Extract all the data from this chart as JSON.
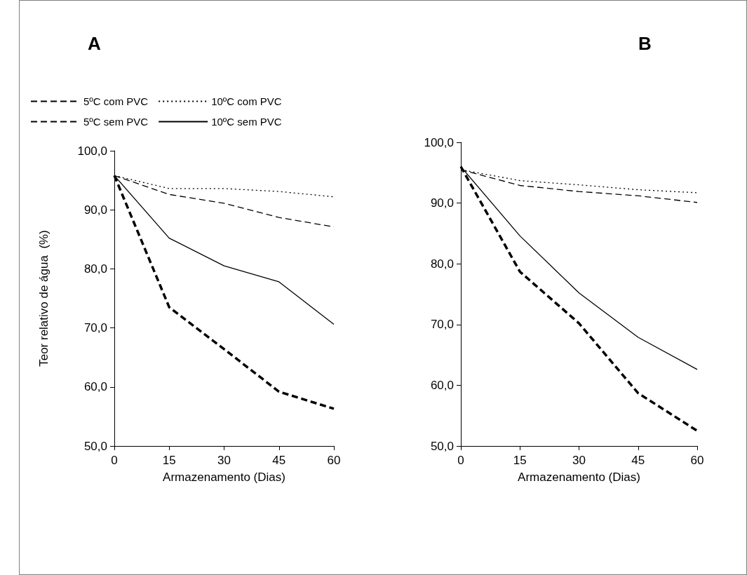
{
  "chart_data": [
    {
      "type": "line",
      "title": "A",
      "xlabel": "Armazenamento (Dias)",
      "ylabel": "Teor relativo de água  (%)",
      "x": [
        0,
        15,
        30,
        45,
        60
      ],
      "xlim": [
        0,
        60
      ],
      "xticks": [
        0,
        15,
        30,
        45,
        60
      ],
      "ylim": [
        50,
        100
      ],
      "yticks": [
        {
          "value": 50,
          "label": "50,0"
        },
        {
          "value": 60,
          "label": "60,0"
        },
        {
          "value": 70,
          "label": "70,0"
        },
        {
          "value": 80,
          "label": "80,0"
        },
        {
          "value": 90,
          "label": "90,0"
        },
        {
          "value": 100,
          "label": "100,0"
        }
      ],
      "grid": false,
      "legend": "top left",
      "marker": "none",
      "series": [
        {
          "name": "5ºC com PVC",
          "color": "#000000",
          "line_style": "dashed",
          "values": [
            95.8,
            92.6,
            91.1,
            88.7,
            87.1
          ]
        },
        {
          "name": "10ºC com PVC",
          "color": "#000000",
          "line_style": "dotted",
          "values": [
            95.8,
            93.6,
            93.6,
            93.1,
            92.2
          ]
        },
        {
          "name": "5ºC sem PVC",
          "color": "#000000",
          "line_style": "dashed",
          "values": [
            95.8,
            73.5,
            66.4,
            59.2,
            56.3
          ]
        },
        {
          "name": "10ºC sem PVC",
          "color": "#000000",
          "line_style": "solid",
          "values": [
            95.8,
            85.2,
            80.5,
            77.8,
            70.6
          ]
        }
      ]
    },
    {
      "type": "line",
      "title": "B",
      "xlabel": "Armazenamento (Dias)",
      "x": [
        0,
        15,
        30,
        45,
        60
      ],
      "xlim": [
        0,
        60
      ],
      "xticks": [
        0,
        15,
        30,
        45,
        60
      ],
      "ylim": [
        50,
        100
      ],
      "yticks": [
        {
          "value": 50,
          "label": "50,0"
        },
        {
          "value": 60,
          "label": "60,0"
        },
        {
          "value": 70,
          "label": "70,0"
        },
        {
          "value": 80,
          "label": "80,0"
        },
        {
          "value": 90,
          "label": "90,0"
        },
        {
          "value": 100,
          "label": "100,0"
        }
      ],
      "grid": false,
      "marker": "none",
      "series": [
        {
          "color": "#000000",
          "line_style": "dashed",
          "values": [
            95.5,
            92.9,
            91.9,
            91.2,
            90.1
          ]
        },
        {
          "color": "#000000",
          "line_style": "dotted",
          "values": [
            95.5,
            93.7,
            93.0,
            92.2,
            91.7
          ]
        },
        {
          "color": "#000000",
          "line_style": "dashed",
          "values": [
            96.0,
            78.7,
            70.2,
            58.7,
            52.5
          ]
        },
        {
          "color": "#000000",
          "line_style": "solid",
          "values": [
            96.0,
            84.6,
            75.2,
            67.9,
            62.6
          ]
        }
      ]
    }
  ]
}
